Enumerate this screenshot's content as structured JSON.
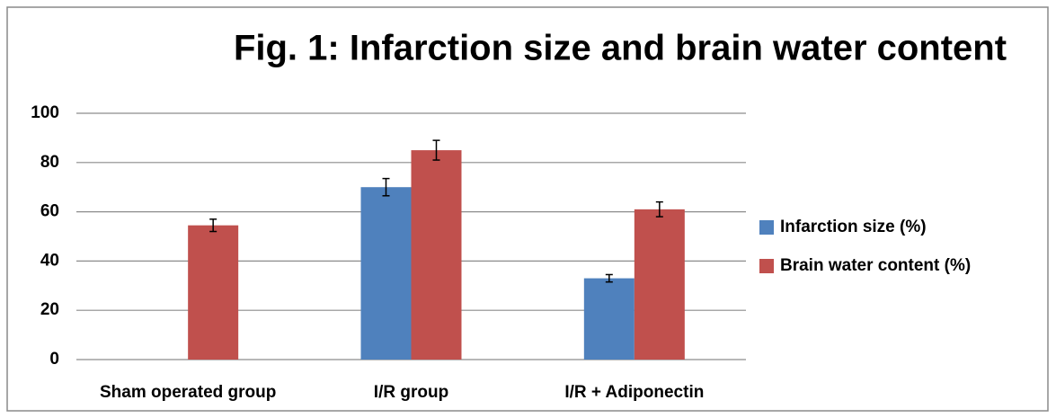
{
  "chart_data": {
    "type": "bar",
    "title": "Fig. 1: Infarction size and brain water content",
    "categories": [
      "Sham operated group",
      "I/R group",
      "I/R + Adiponectin"
    ],
    "series": [
      {
        "name": "Infarction size (%)",
        "color": "#4f81bd",
        "values": [
          0,
          70,
          33
        ],
        "errors": [
          null,
          3.5,
          1.5
        ]
      },
      {
        "name": "Brain water content (%)",
        "color": "#c0504d",
        "values": [
          54.5,
          85,
          61
        ],
        "errors": [
          2.5,
          4,
          3
        ]
      }
    ],
    "ylim": [
      0,
      100
    ],
    "yticks": [
      0,
      20,
      40,
      60,
      80,
      100
    ],
    "grid": true,
    "legend": "right"
  }
}
